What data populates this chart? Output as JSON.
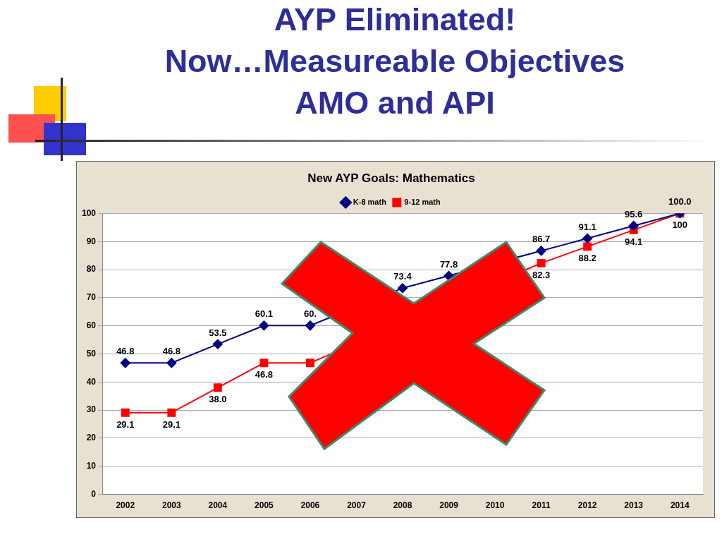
{
  "chart_data": {
    "type": "line",
    "title": "AYP Eliminated!\nNow…Measureable Objectives\nAMO and API",
    "subtitle": "New AYP Goals: Mathematics",
    "categories": [
      "2002",
      "2003",
      "2004",
      "2005",
      "2006",
      "2007",
      "2008",
      "2009",
      "2010",
      "2011",
      "2012",
      "2013",
      "2014"
    ],
    "series": [
      {
        "name": "K-8 math",
        "color": "#000080",
        "marker": "diamond",
        "values": [
          46.8,
          46.8,
          53.5,
          60.1,
          60.1,
          null,
          73.4,
          77.8,
          null,
          86.7,
          91.1,
          95.6,
          100.0
        ],
        "value_labels": [
          "46.8",
          "46.8",
          "53.5",
          "60.1",
          "60.",
          null,
          "73.4",
          "77.8",
          null,
          "86.7",
          "91.1",
          "95.6",
          "100.0"
        ]
      },
      {
        "name": "9-12 math",
        "color": "#ff0000",
        "marker": "square",
        "values": [
          29.1,
          29.1,
          38.0,
          46.8,
          46.8,
          null,
          null,
          null,
          null,
          82.3,
          88.2,
          94.1,
          100
        ],
        "value_labels": [
          "29.1",
          "29.1",
          "38.0",
          "46.8",
          null,
          null,
          null,
          null,
          null,
          "82.3",
          "88.2",
          "94.1",
          "100"
        ]
      }
    ],
    "ylim": [
      0,
      100
    ],
    "yticks": [
      0,
      10,
      20,
      30,
      40,
      50,
      60,
      70,
      80,
      90,
      100
    ],
    "grid": "y",
    "legend": "top"
  }
}
